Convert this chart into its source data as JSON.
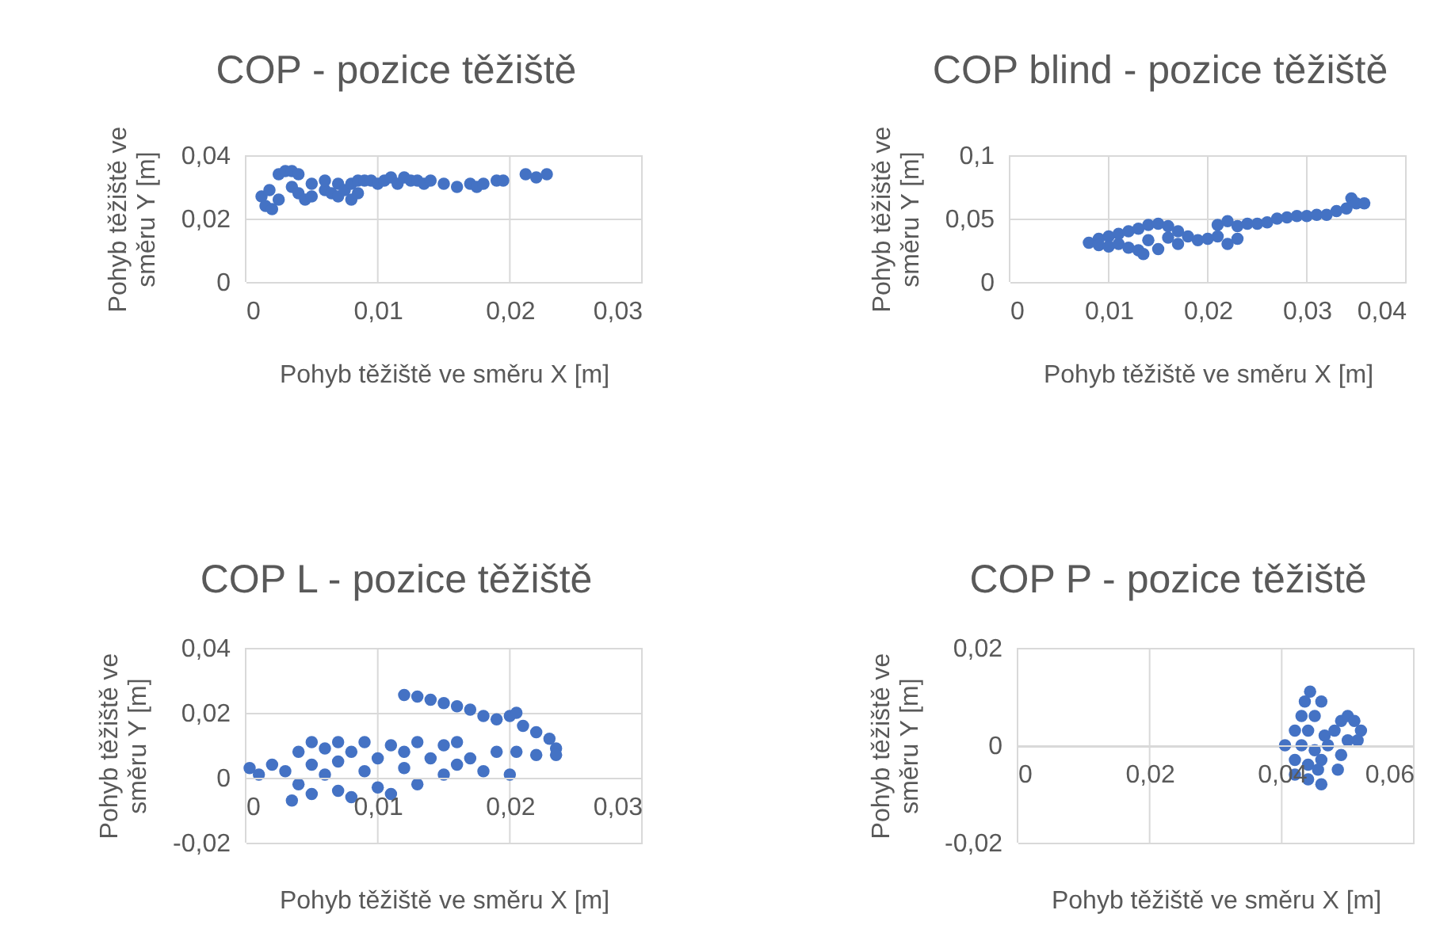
{
  "chart_data": [
    {
      "type": "scatter",
      "title": "COP - pozice těžiště",
      "xlabel": "Pohyb těžiště ve směru X [m]",
      "ylabel": "Pohyb těžiště ve směru Y [m]",
      "grid": true,
      "marker": "circle",
      "xlim": [
        0,
        0.03
      ],
      "xticks": [
        {
          "value": 0,
          "label": "0"
        },
        {
          "value": 0.01,
          "label": "0,01"
        },
        {
          "value": 0.02,
          "label": "0,02"
        },
        {
          "value": 0.03,
          "label": "0,03"
        }
      ],
      "ylim": [
        0,
        0.04
      ],
      "yticks": [
        {
          "value": 0,
          "label": "0"
        },
        {
          "value": 0.02,
          "label": "0,02"
        },
        {
          "value": 0.04,
          "label": "0,04"
        }
      ],
      "series": [
        {
          "color": "#4472c4",
          "x": [
            0.0012,
            0.0015,
            0.002,
            0.0018,
            0.0025,
            0.0025,
            0.003,
            0.0035,
            0.004,
            0.0035,
            0.004,
            0.0045,
            0.005,
            0.005,
            0.006,
            0.006,
            0.0065,
            0.007,
            0.007,
            0.0075,
            0.008,
            0.008,
            0.0085,
            0.0085,
            0.009,
            0.0095,
            0.01,
            0.0105,
            0.011,
            0.0115,
            0.012,
            0.0125,
            0.013,
            0.0135,
            0.014,
            0.015,
            0.016,
            0.017,
            0.0175,
            0.018,
            0.019,
            0.0195,
            0.0212,
            0.022,
            0.0228
          ],
          "values": [
            0.027,
            0.024,
            0.023,
            0.029,
            0.026,
            0.034,
            0.035,
            0.035,
            0.034,
            0.03,
            0.028,
            0.026,
            0.027,
            0.031,
            0.029,
            0.032,
            0.028,
            0.031,
            0.027,
            0.029,
            0.026,
            0.031,
            0.032,
            0.028,
            0.032,
            0.032,
            0.031,
            0.032,
            0.033,
            0.031,
            0.033,
            0.032,
            0.032,
            0.031,
            0.032,
            0.031,
            0.03,
            0.031,
            0.03,
            0.031,
            0.032,
            0.032,
            0.034,
            0.033,
            0.034
          ]
        }
      ]
    },
    {
      "type": "scatter",
      "title": "COP blind - pozice těžiště",
      "xlabel": "Pohyb těžiště ve směru X [m]",
      "ylabel": "Pohyb těžiště ve směru Y [m]",
      "grid": true,
      "marker": "circle",
      "xlim": [
        0,
        0.04
      ],
      "xticks": [
        {
          "value": 0,
          "label": "0"
        },
        {
          "value": 0.01,
          "label": "0,01"
        },
        {
          "value": 0.02,
          "label": "0,02"
        },
        {
          "value": 0.03,
          "label": "0,03"
        },
        {
          "value": 0.04,
          "label": "0,04"
        }
      ],
      "ylim": [
        0,
        0.1
      ],
      "yticks": [
        {
          "value": 0,
          "label": "0"
        },
        {
          "value": 0.05,
          "label": "0,05"
        },
        {
          "value": 0.1,
          "label": "0,1"
        }
      ],
      "series": [
        {
          "color": "#4472c4",
          "x": [
            0.008,
            0.009,
            0.009,
            0.01,
            0.01,
            0.011,
            0.011,
            0.012,
            0.012,
            0.013,
            0.013,
            0.0135,
            0.014,
            0.014,
            0.015,
            0.015,
            0.016,
            0.016,
            0.017,
            0.017,
            0.018,
            0.019,
            0.02,
            0.021,
            0.021,
            0.022,
            0.022,
            0.023,
            0.023,
            0.024,
            0.025,
            0.026,
            0.027,
            0.028,
            0.029,
            0.03,
            0.031,
            0.032,
            0.033,
            0.034,
            0.0345,
            0.035,
            0.0358
          ],
          "values": [
            0.031,
            0.034,
            0.029,
            0.036,
            0.028,
            0.038,
            0.03,
            0.04,
            0.027,
            0.042,
            0.025,
            0.022,
            0.045,
            0.033,
            0.046,
            0.026,
            0.044,
            0.035,
            0.04,
            0.03,
            0.036,
            0.033,
            0.034,
            0.045,
            0.036,
            0.048,
            0.03,
            0.044,
            0.034,
            0.046,
            0.046,
            0.047,
            0.05,
            0.051,
            0.052,
            0.052,
            0.053,
            0.053,
            0.056,
            0.058,
            0.066,
            0.062,
            0.062
          ]
        }
      ]
    },
    {
      "type": "scatter",
      "title": "COP L - pozice těžiště",
      "xlabel": "Pohyb těžiště ve směru X [m]",
      "ylabel": "Pohyb těžiště ve směru Y [m]",
      "grid": true,
      "marker": "circle",
      "xlim": [
        0,
        0.03
      ],
      "xticks": [
        {
          "value": 0,
          "label": "0"
        },
        {
          "value": 0.01,
          "label": "0,01"
        },
        {
          "value": 0.02,
          "label": "0,02"
        },
        {
          "value": 0.03,
          "label": "0,03"
        }
      ],
      "ylim": [
        -0.02,
        0.04
      ],
      "yticks": [
        {
          "value": -0.02,
          "label": "-0,02"
        },
        {
          "value": 0,
          "label": "0"
        },
        {
          "value": 0.02,
          "label": "0,02"
        },
        {
          "value": 0.04,
          "label": "0,04"
        }
      ],
      "series": [
        {
          "color": "#4472c4",
          "x": [
            0.0003,
            0.001,
            0.002,
            0.003,
            0.0035,
            0.004,
            0.004,
            0.005,
            0.005,
            0.005,
            0.006,
            0.006,
            0.007,
            0.007,
            0.007,
            0.008,
            0.008,
            0.009,
            0.009,
            0.01,
            0.01,
            0.011,
            0.011,
            0.012,
            0.012,
            0.013,
            0.013,
            0.014,
            0.015,
            0.015,
            0.016,
            0.016,
            0.017,
            0.018,
            0.019,
            0.02,
            0.0205,
            0.012,
            0.013,
            0.014,
            0.015,
            0.016,
            0.017,
            0.018,
            0.019,
            0.02,
            0.0205,
            0.021,
            0.022,
            0.023,
            0.0235,
            0.0235,
            0.022
          ],
          "values": [
            0.003,
            0.001,
            0.004,
            0.002,
            -0.007,
            0.008,
            -0.002,
            0.011,
            0.004,
            -0.005,
            0.009,
            0.001,
            0.011,
            -0.004,
            0.005,
            0.008,
            -0.006,
            0.011,
            0.002,
            0.006,
            -0.003,
            0.01,
            -0.005,
            0.003,
            0.008,
            0.011,
            -0.002,
            0.006,
            0.01,
            0.001,
            0.011,
            0.004,
            0.006,
            0.002,
            0.008,
            0.001,
            0.008,
            0.0255,
            0.025,
            0.024,
            0.023,
            0.022,
            0.021,
            0.019,
            0.018,
            0.019,
            0.02,
            0.016,
            0.014,
            0.012,
            0.009,
            0.007,
            0.007
          ]
        }
      ]
    },
    {
      "type": "scatter",
      "title": "COP P - pozice těžiště",
      "xlabel": "Pohyb těžiště ve směru X [m]",
      "ylabel": "Pohyb těžiště ve směru Y [m]",
      "grid": true,
      "marker": "circle",
      "xlim": [
        0,
        0.06
      ],
      "xticks": [
        {
          "value": 0,
          "label": "0"
        },
        {
          "value": 0.02,
          "label": "0,02"
        },
        {
          "value": 0.04,
          "label": "0,04"
        },
        {
          "value": 0.06,
          "label": "0,06"
        }
      ],
      "ylim": [
        -0.02,
        0.02
      ],
      "yticks": [
        {
          "value": -0.02,
          "label": "-0,02"
        },
        {
          "value": 0,
          "label": "0"
        },
        {
          "value": 0.02,
          "label": "0,02"
        }
      ],
      "series": [
        {
          "color": "#4472c4",
          "x": [
            0.0443,
            0.0435,
            0.046,
            0.043,
            0.045,
            0.042,
            0.044,
            0.0465,
            0.0405,
            0.043,
            0.045,
            0.042,
            0.044,
            0.046,
            0.042,
            0.044,
            0.046,
            0.0455,
            0.048,
            0.049,
            0.05,
            0.051,
            0.052,
            0.0515,
            0.05,
            0.049,
            0.0485,
            0.047
          ],
          "values": [
            0.011,
            0.009,
            0.009,
            0.006,
            0.006,
            0.003,
            0.003,
            0.002,
            0,
            0,
            -0.001,
            -0.003,
            -0.004,
            -0.003,
            -0.006,
            -0.007,
            -0.008,
            -0.005,
            0.003,
            0.005,
            0.006,
            0.005,
            0.003,
            0.001,
            0.001,
            -0.002,
            -0.005,
            0
          ]
        }
      ]
    }
  ]
}
